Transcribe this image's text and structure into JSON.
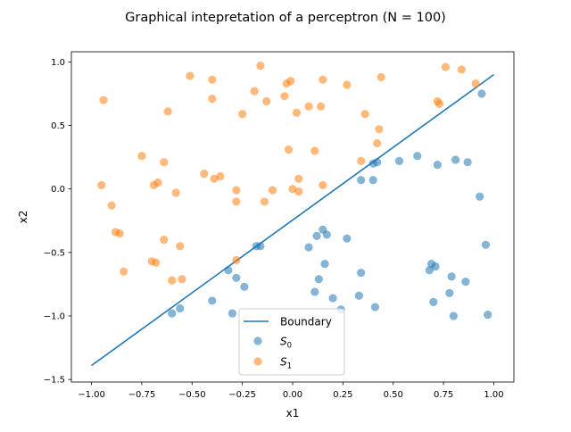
{
  "chart_data": {
    "type": "scatter",
    "title": "Graphical intepretation of a perceptron (N = 100)",
    "xlabel": "x1",
    "ylabel": "x2",
    "xlim": [
      -1.1,
      1.1
    ],
    "ylim": [
      -1.52,
      1.08
    ],
    "xticks": [
      -1.0,
      -0.75,
      -0.5,
      -0.25,
      0.0,
      0.25,
      0.5,
      0.75,
      1.0
    ],
    "xtick_labels": [
      "−1.00",
      "−0.75",
      "−0.50",
      "−0.25",
      "0.00",
      "0.25",
      "0.50",
      "0.75",
      "1.00"
    ],
    "yticks": [
      -1.5,
      -1.0,
      -0.5,
      0.0,
      0.5,
      1.0
    ],
    "ytick_labels": [
      "−1.5",
      "−1.0",
      "−0.5",
      "0.0",
      "0.5",
      "1.0"
    ],
    "grid": false,
    "legend_position": "lower center",
    "boundary": {
      "name": "Boundary",
      "color": "#1f77b4",
      "x": [
        -1.0,
        1.0
      ],
      "y": [
        -1.39,
        0.9
      ]
    },
    "series": [
      {
        "name": "S",
        "subscript": "0",
        "color": "#1f77b4",
        "points": [
          [
            -0.6,
            -0.98
          ],
          [
            -0.56,
            -0.94
          ],
          [
            -0.4,
            -0.88
          ],
          [
            -0.32,
            -0.64
          ],
          [
            -0.3,
            -0.98
          ],
          [
            -0.28,
            -0.7
          ],
          [
            -0.24,
            -0.77
          ],
          [
            -0.18,
            -0.45
          ],
          [
            -0.16,
            -0.45
          ],
          [
            0.08,
            -0.46
          ],
          [
            0.11,
            -0.81
          ],
          [
            0.12,
            -0.37
          ],
          [
            0.13,
            -0.71
          ],
          [
            0.15,
            -0.32
          ],
          [
            0.16,
            -0.59
          ],
          [
            0.17,
            -0.36
          ],
          [
            0.2,
            -0.86
          ],
          [
            0.24,
            -0.95
          ],
          [
            0.27,
            -0.39
          ],
          [
            0.33,
            -0.84
          ],
          [
            0.34,
            -0.66
          ],
          [
            0.34,
            0.07
          ],
          [
            0.4,
            0.07
          ],
          [
            0.4,
            0.2
          ],
          [
            0.41,
            -0.93
          ],
          [
            0.42,
            0.21
          ],
          [
            0.53,
            0.22
          ],
          [
            0.62,
            0.26
          ],
          [
            0.68,
            -0.64
          ],
          [
            0.69,
            -0.59
          ],
          [
            0.7,
            -0.89
          ],
          [
            0.71,
            -0.61
          ],
          [
            0.72,
            0.19
          ],
          [
            0.78,
            -0.82
          ],
          [
            0.79,
            -0.69
          ],
          [
            0.8,
            -1.0
          ],
          [
            0.81,
            0.23
          ],
          [
            0.86,
            -0.73
          ],
          [
            0.87,
            0.21
          ],
          [
            0.93,
            -0.06
          ],
          [
            0.94,
            0.75
          ],
          [
            0.96,
            -0.44
          ],
          [
            0.97,
            -0.99
          ]
        ]
      },
      {
        "name": "S",
        "subscript": "1",
        "color": "#ff7f0e",
        "points": [
          [
            -0.95,
            0.03
          ],
          [
            -0.94,
            0.7
          ],
          [
            -0.9,
            -0.13
          ],
          [
            -0.88,
            -0.34
          ],
          [
            -0.86,
            -0.35
          ],
          [
            -0.84,
            -0.65
          ],
          [
            -0.75,
            0.26
          ],
          [
            -0.7,
            -0.57
          ],
          [
            -0.69,
            0.03
          ],
          [
            -0.68,
            -0.58
          ],
          [
            -0.67,
            0.05
          ],
          [
            -0.64,
            0.21
          ],
          [
            -0.64,
            -0.4
          ],
          [
            -0.62,
            0.61
          ],
          [
            -0.6,
            -0.72
          ],
          [
            -0.58,
            -0.03
          ],
          [
            -0.56,
            -0.45
          ],
          [
            -0.55,
            -0.71
          ],
          [
            -0.51,
            0.89
          ],
          [
            -0.44,
            0.12
          ],
          [
            -0.4,
            0.86
          ],
          [
            -0.4,
            0.71
          ],
          [
            -0.39,
            0.08
          ],
          [
            -0.36,
            0.1
          ],
          [
            -0.28,
            -0.01
          ],
          [
            -0.28,
            -0.56
          ],
          [
            -0.28,
            -0.1
          ],
          [
            -0.25,
            0.59
          ],
          [
            -0.19,
            0.77
          ],
          [
            -0.16,
            0.97
          ],
          [
            -0.14,
            -0.1
          ],
          [
            -0.13,
            0.69
          ],
          [
            -0.1,
            -0.01
          ],
          [
            -0.04,
            0.73
          ],
          [
            -0.03,
            0.83
          ],
          [
            -0.02,
            0.31
          ],
          [
            -0.01,
            0.85
          ],
          [
            0.0,
            0.0
          ],
          [
            0.02,
            0.6
          ],
          [
            0.03,
            0.08
          ],
          [
            0.03,
            -0.02
          ],
          [
            0.08,
            0.65
          ],
          [
            0.11,
            0.3
          ],
          [
            0.14,
            0.65
          ],
          [
            0.15,
            0.86
          ],
          [
            0.15,
            0.03
          ],
          [
            0.27,
            0.82
          ],
          [
            0.34,
            0.22
          ],
          [
            0.36,
            0.59
          ],
          [
            0.42,
            0.36
          ],
          [
            0.43,
            0.47
          ],
          [
            0.44,
            0.88
          ],
          [
            0.72,
            0.69
          ],
          [
            0.73,
            0.67
          ],
          [
            0.76,
            0.96
          ],
          [
            0.84,
            0.94
          ],
          [
            0.91,
            0.83
          ]
        ]
      }
    ]
  }
}
